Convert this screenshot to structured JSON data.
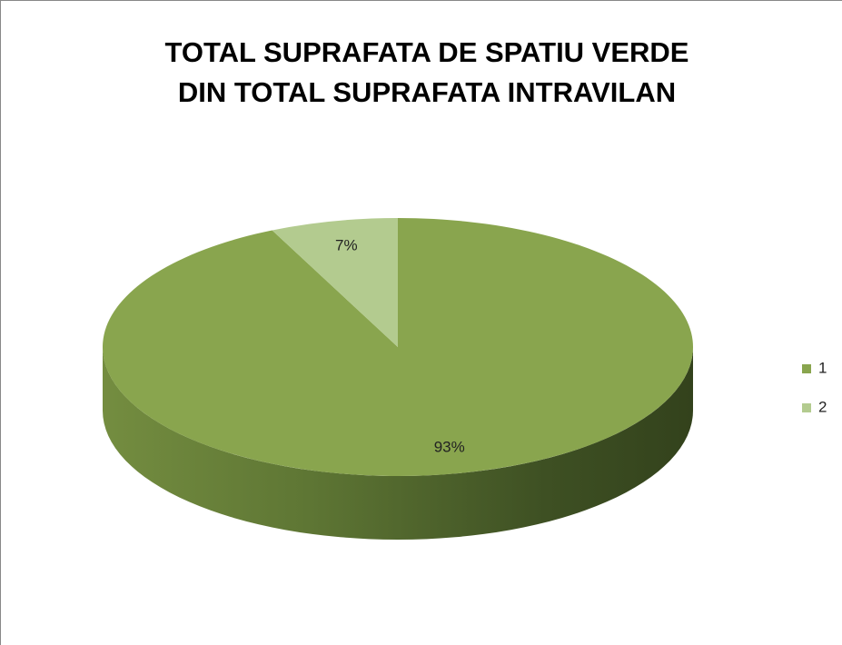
{
  "chart_data": {
    "type": "pie3d",
    "title": [
      "TOTAL SUPRAFATA DE SPATIU VERDE",
      "DIN TOTAL SUPRAFATA INTRAVILAN"
    ],
    "categories": [
      "1",
      "2"
    ],
    "values": [
      93,
      7
    ],
    "value_labels": [
      "93%",
      "7%"
    ],
    "colors": [
      "#89a54e",
      "#b3cb8f"
    ],
    "legend": "right"
  }
}
